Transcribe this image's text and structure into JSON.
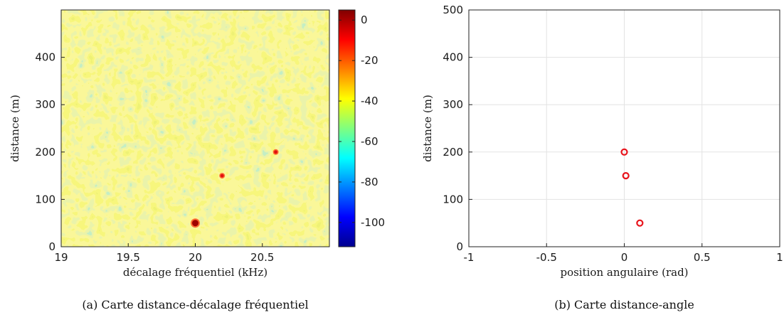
{
  "chart_data": [
    {
      "type": "heatmap",
      "caption": "(a) Carte distance-décalage fréquentiel",
      "xlabel": "décalage fréquentiel (kHz)",
      "ylabel": "distance (m)",
      "xlim": [
        19,
        21
      ],
      "ylim": [
        0,
        500
      ],
      "xticks": [
        "19",
        "19.5",
        "20",
        "20.5"
      ],
      "yticks": [
        "0",
        "100",
        "200",
        "300",
        "400"
      ],
      "colorbar": {
        "ticks": [
          "0",
          "-20",
          "-40",
          "-60",
          "-80",
          "-100"
        ],
        "range": [
          -112,
          5
        ],
        "colormap": "jet"
      },
      "background_level_db": -45,
      "peaks": [
        {
          "x": 20.0,
          "y": 50,
          "level_db": 0
        },
        {
          "x": 20.2,
          "y": 150,
          "level_db": -8
        },
        {
          "x": 20.6,
          "y": 200,
          "level_db": -12
        }
      ]
    },
    {
      "type": "scatter",
      "caption": "(b) Carte distance-angle",
      "xlabel": "position angulaire (rad)",
      "ylabel": "distance (m)",
      "xlim": [
        -1,
        1
      ],
      "ylim": [
        0,
        500
      ],
      "xticks": [
        "-1",
        "-0.5",
        "0",
        "0.5",
        "1"
      ],
      "yticks": [
        "0",
        "100",
        "200",
        "300",
        "400",
        "500"
      ],
      "grid": true,
      "marker_color": "#e8141c",
      "points": [
        {
          "x": 0.0,
          "y": 200
        },
        {
          "x": 0.01,
          "y": 150
        },
        {
          "x": 0.1,
          "y": 50
        }
      ]
    }
  ]
}
